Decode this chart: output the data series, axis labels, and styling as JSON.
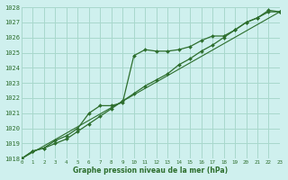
{
  "title": "Graphe pression niveau de la mer (hPa)",
  "bg_color": "#cff0ee",
  "grid_color": "#a8d8cc",
  "line_color": "#2d6e2d",
  "xmin": 0,
  "xmax": 23,
  "ymin": 1018,
  "ymax": 1028,
  "yticks": [
    1018,
    1019,
    1020,
    1021,
    1022,
    1023,
    1024,
    1025,
    1026,
    1027,
    1028
  ],
  "xticks": [
    0,
    1,
    2,
    3,
    4,
    5,
    6,
    7,
    8,
    9,
    10,
    11,
    12,
    13,
    14,
    15,
    16,
    17,
    18,
    19,
    20,
    21,
    22,
    23
  ],
  "series1_x": [
    0,
    1,
    2,
    3,
    4,
    5,
    6,
    7,
    8,
    9,
    10,
    11,
    12,
    13,
    14,
    15,
    16,
    17,
    18,
    19,
    20,
    21,
    22,
    23
  ],
  "series1_y": [
    1018.0,
    1018.5,
    1018.7,
    1019.2,
    1019.5,
    1020.0,
    1021.0,
    1021.5,
    1021.5,
    1021.7,
    1024.8,
    1025.2,
    1025.1,
    1025.1,
    1025.2,
    1025.4,
    1025.8,
    1026.1,
    1026.1,
    1026.5,
    1027.0,
    1027.3,
    1027.8,
    1027.7
  ],
  "series2_x": [
    0,
    1,
    2,
    3,
    4,
    5,
    6,
    7,
    8,
    9,
    10,
    11,
    12,
    13,
    14,
    15,
    16,
    17,
    18,
    19,
    20,
    21,
    22,
    23
  ],
  "series2_y": [
    1018.0,
    1018.5,
    1018.7,
    1019.0,
    1019.3,
    1019.8,
    1020.3,
    1020.8,
    1021.3,
    1021.8,
    1022.3,
    1022.8,
    1023.2,
    1023.6,
    1024.2,
    1024.6,
    1025.1,
    1025.5,
    1026.0,
    1026.5,
    1027.0,
    1027.3,
    1027.7,
    1027.7
  ],
  "trend_x": [
    0,
    23
  ],
  "trend_y": [
    1018.0,
    1027.7
  ]
}
